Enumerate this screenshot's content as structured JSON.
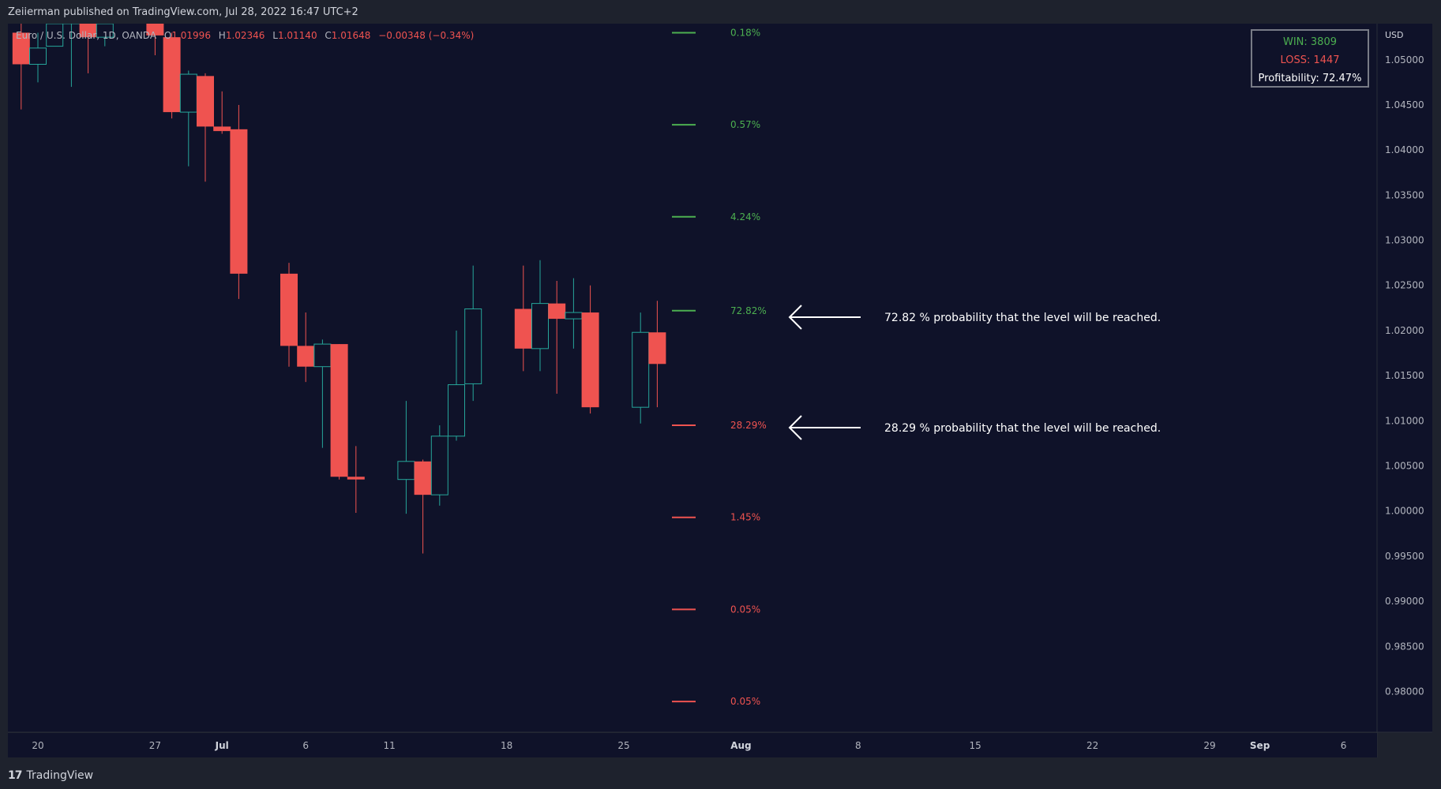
{
  "header": {
    "published": "Zeiierman published on TradingView.com, Jul 28, 2022 16:47 UTC+2"
  },
  "footer": {
    "brand": "TradingView",
    "brand_mark": "17"
  },
  "legend": {
    "symbol": "Euro / U.S. Dollar, 1D, OANDA",
    "open_label": "O",
    "open_value": "1.01996",
    "high_label": "H",
    "high_value": "1.02346",
    "low_label": "L",
    "low_value": "1.01140",
    "close_label": "C",
    "close_value": "1.01648",
    "change": "−0.00348 (−0.34%)"
  },
  "stats_box": {
    "win": "WIN: 3809",
    "loss": "LOSS: 1447",
    "profitability": "Profitability: 72.47%"
  },
  "annotations": [
    {
      "text": "72.82 % probability that the level will be reached.",
      "level": 1.0218
    },
    {
      "text": "28.29 % probability that the level will be reached.",
      "level": 1.0096
    }
  ],
  "colors": {
    "up": "#26a69a",
    "down": "#ef5350",
    "bg": "#0f1229",
    "green": "#4caf50",
    "red": "#ef5350",
    "text": "#b2b5be"
  },
  "chart_data": {
    "type": "candlestick",
    "title": "Euro / U.S. Dollar, 1D, OANDA",
    "currency_label": "USD",
    "ylim": [
      0.9755,
      1.054
    ],
    "y_ticks": [
      "1.05000",
      "1.04500",
      "1.04000",
      "1.03500",
      "1.03000",
      "1.02500",
      "1.02000",
      "1.01500",
      "1.01000",
      "1.00500",
      "1.00000",
      "0.99500",
      "0.99000",
      "0.98500",
      "0.98000"
    ],
    "x_ticks": [
      {
        "label": "20",
        "day": 0
      },
      {
        "label": "27",
        "day": 7
      },
      {
        "label": "Jul",
        "day": 11
      },
      {
        "label": "6",
        "day": 16
      },
      {
        "label": "11",
        "day": 21
      },
      {
        "label": "18",
        "day": 28
      },
      {
        "label": "25",
        "day": 35
      },
      {
        "label": "Aug",
        "day": 42
      },
      {
        "label": "8",
        "day": 49
      },
      {
        "label": "15",
        "day": 56
      },
      {
        "label": "22",
        "day": 63
      },
      {
        "label": "29",
        "day": 70
      },
      {
        "label": "Sep",
        "day": 73
      },
      {
        "label": "6",
        "day": 78
      }
    ],
    "candles": [
      {
        "day": -1,
        "o": 1.053,
        "h": 1.0545,
        "l": 1.0445,
        "c": 1.0495
      },
      {
        "day": 0,
        "o": 1.0495,
        "h": 1.053,
        "l": 1.0475,
        "c": 1.0513
      },
      {
        "day": 1,
        "o": 1.0515,
        "h": 1.0545,
        "l": 1.0515,
        "c": 1.054
      },
      {
        "day": 2,
        "o": 1.054,
        "h": 1.0545,
        "l": 1.047,
        "c": 1.0545
      },
      {
        "day": 3,
        "o": 1.0545,
        "h": 1.0545,
        "l": 1.0485,
        "c": 1.0525
      },
      {
        "day": 4,
        "o": 1.0525,
        "h": 1.0545,
        "l": 1.0515,
        "c": 1.054
      },
      {
        "day": 7,
        "o": 1.0545,
        "h": 1.0545,
        "l": 1.0505,
        "c": 1.0527
      },
      {
        "day": 8,
        "o": 1.0525,
        "h": 1.053,
        "l": 1.0435,
        "c": 1.0442
      },
      {
        "day": 9,
        "o": 1.0442,
        "h": 1.0488,
        "l": 1.0382,
        "c": 1.0484
      },
      {
        "day": 10,
        "o": 1.0482,
        "h": 1.0485,
        "l": 1.0365,
        "c": 1.0426
      },
      {
        "day": 11,
        "o": 1.0426,
        "h": 1.0465,
        "l": 1.0418,
        "c": 1.0421
      },
      {
        "day": 12,
        "o": 1.0423,
        "h": 1.045,
        "l": 1.0235,
        "c": 1.0263
      },
      {
        "day": 15,
        "o": 1.0263,
        "h": 1.0275,
        "l": 1.016,
        "c": 1.0183
      },
      {
        "day": 16,
        "o": 1.0183,
        "h": 1.022,
        "l": 1.0143,
        "c": 1.016
      },
      {
        "day": 17,
        "o": 1.016,
        "h": 1.019,
        "l": 1.007,
        "c": 1.0185
      },
      {
        "day": 18,
        "o": 1.0185,
        "h": 1.0185,
        "l": 1.0035,
        "c": 1.0038
      },
      {
        "day": 19,
        "o": 1.0038,
        "h": 1.0072,
        "l": 0.9998,
        "c": 1.0035
      },
      {
        "day": 22,
        "o": 1.0035,
        "h": 1.0122,
        "l": 0.9997,
        "c": 1.0055
      },
      {
        "day": 23,
        "o": 1.0055,
        "h": 1.0057,
        "l": 0.9953,
        "c": 1.0018
      },
      {
        "day": 24,
        "o": 1.0018,
        "h": 1.0095,
        "l": 1.0006,
        "c": 1.0083
      },
      {
        "day": 25,
        "o": 1.0083,
        "h": 1.02,
        "l": 1.0078,
        "c": 1.014
      },
      {
        "day": 26,
        "o": 1.0141,
        "h": 1.0272,
        "l": 1.0122,
        "c": 1.0224
      },
      {
        "day": 29,
        "o": 1.0224,
        "h": 1.0272,
        "l": 1.0155,
        "c": 1.018
      },
      {
        "day": 30,
        "o": 1.018,
        "h": 1.0278,
        "l": 1.0155,
        "c": 1.023
      },
      {
        "day": 31,
        "o": 1.023,
        "h": 1.0255,
        "l": 1.013,
        "c": 1.0213
      },
      {
        "day": 32,
        "o": 1.0213,
        "h": 1.0258,
        "l": 1.018,
        "c": 1.022
      },
      {
        "day": 33,
        "o": 1.022,
        "h": 1.025,
        "l": 1.0108,
        "c": 1.0115
      },
      {
        "day": 36,
        "o": 1.0115,
        "h": 1.022,
        "l": 1.0097,
        "c": 1.0198
      },
      {
        "day": 37,
        "o": 1.0198,
        "h": 1.0233,
        "l": 1.0115,
        "c": 1.0163
      }
    ],
    "levels": [
      {
        "label": "0.18%",
        "value": 1.053,
        "color": "green"
      },
      {
        "label": "0.57%",
        "value": 1.0428,
        "color": "green"
      },
      {
        "label": "4.24%",
        "value": 1.0326,
        "color": "green"
      },
      {
        "label": "72.82%",
        "value": 1.0222,
        "color": "green"
      },
      {
        "label": "28.29%",
        "value": 1.0095,
        "color": "red"
      },
      {
        "label": "1.45%",
        "value": 0.9993,
        "color": "red"
      },
      {
        "label": "0.05%",
        "value": 0.9891,
        "color": "red"
      },
      {
        "label": "0.05%",
        "value": 0.9789,
        "color": "red"
      }
    ]
  }
}
